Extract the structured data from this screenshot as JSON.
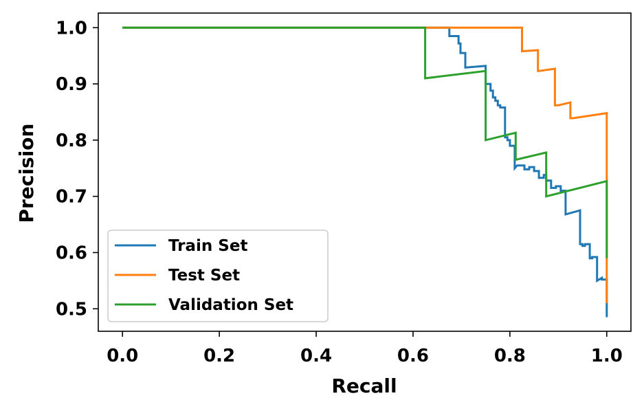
{
  "chart_data": {
    "type": "line",
    "title": "",
    "xlabel": "Recall",
    "ylabel": "Precision",
    "xlim": [
      -0.05,
      1.05
    ],
    "ylim": [
      0.46,
      1.026
    ],
    "grid": false,
    "legend_position": "lower-left",
    "xticks": [
      0.0,
      0.2,
      0.4,
      0.6,
      0.8,
      1.0
    ],
    "xtick_labels": [
      "0.0",
      "0.2",
      "0.4",
      "0.6",
      "0.8",
      "1.0"
    ],
    "yticks": [
      0.5,
      0.6,
      0.7,
      0.8,
      0.9,
      1.0
    ],
    "ytick_labels": [
      "0.5",
      "0.6",
      "0.7",
      "0.8",
      "0.9",
      "1.0"
    ],
    "series": [
      {
        "name": "Train Set",
        "color": "#1f77b4",
        "x": [
          0.0,
          0.675,
          0.675,
          0.694,
          0.694,
          0.698,
          0.698,
          0.708,
          0.708,
          0.75,
          0.75,
          0.76,
          0.76,
          0.765,
          0.765,
          0.77,
          0.77,
          0.775,
          0.775,
          0.78,
          0.78,
          0.79,
          0.79,
          0.795,
          0.795,
          0.8,
          0.8,
          0.81,
          0.81,
          0.815,
          0.815,
          0.83,
          0.83,
          0.84,
          0.84,
          0.85,
          0.85,
          0.86,
          0.86,
          0.87,
          0.87,
          0.875,
          0.875,
          0.885,
          0.885,
          0.895,
          0.895,
          0.905,
          0.905,
          0.915,
          0.915,
          0.945,
          0.945,
          0.95,
          0.95,
          0.955,
          0.955,
          0.965,
          0.965,
          0.97,
          0.97,
          0.98,
          0.98,
          0.99,
          0.99,
          1.0,
          1.0
        ],
        "y": [
          1.0,
          1.0,
          0.985,
          0.985,
          0.972,
          0.972,
          0.955,
          0.955,
          0.929,
          0.932,
          0.9,
          0.9,
          0.888,
          0.888,
          0.876,
          0.876,
          0.87,
          0.87,
          0.862,
          0.862,
          0.858,
          0.858,
          0.805,
          0.805,
          0.8,
          0.8,
          0.79,
          0.79,
          0.75,
          0.755,
          0.755,
          0.755,
          0.748,
          0.748,
          0.752,
          0.752,
          0.745,
          0.745,
          0.733,
          0.733,
          0.738,
          0.738,
          0.728,
          0.728,
          0.715,
          0.715,
          0.718,
          0.718,
          0.71,
          0.71,
          0.668,
          0.675,
          0.615,
          0.615,
          0.612,
          0.612,
          0.615,
          0.615,
          0.59,
          0.59,
          0.592,
          0.592,
          0.55,
          0.555,
          0.552,
          0.552,
          0.485
        ]
      },
      {
        "name": "Test Set",
        "color": "#ff7f0e",
        "x": [
          0.0,
          0.825,
          0.825,
          0.858,
          0.858,
          0.86,
          0.86,
          0.893,
          0.893,
          0.9,
          0.9,
          0.925,
          0.925,
          0.93,
          0.93,
          1.0,
          1.0
        ],
        "y": [
          1.0,
          1.0,
          0.958,
          0.96,
          0.923,
          0.923,
          0.923,
          0.927,
          0.862,
          0.862,
          0.862,
          0.867,
          0.839,
          0.839,
          0.839,
          0.848,
          0.51
        ]
      },
      {
        "name": "Validation Set",
        "color": "#2ca02c",
        "x": [
          0.0,
          0.625,
          0.625,
          0.75,
          0.75,
          0.812,
          0.812,
          0.875,
          0.875,
          1.0,
          1.0
        ],
        "y": [
          1.0,
          1.0,
          0.91,
          0.923,
          0.8,
          0.813,
          0.765,
          0.778,
          0.7,
          0.727,
          0.59
        ]
      }
    ]
  }
}
